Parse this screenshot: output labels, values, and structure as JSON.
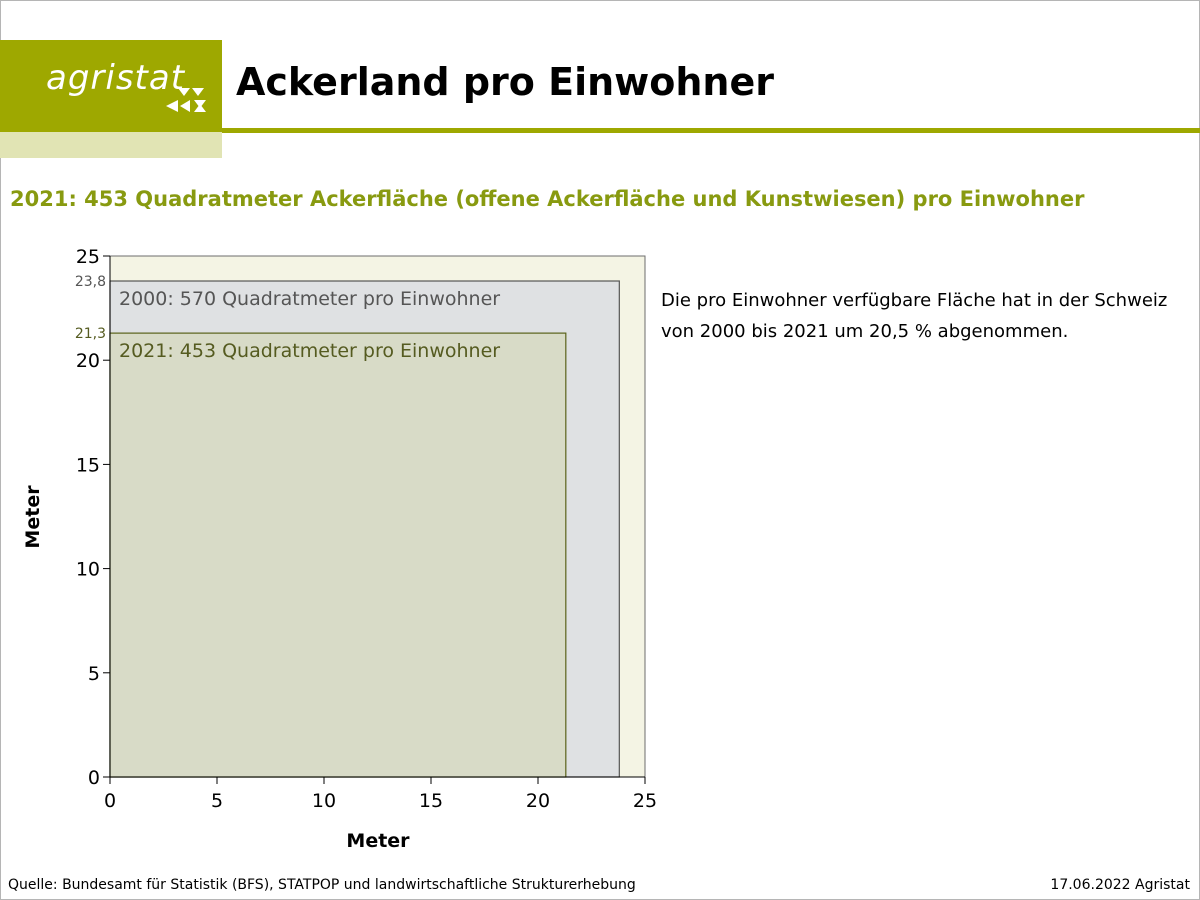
{
  "header": {
    "logo_text": "agristat",
    "title": "Ackerland pro Einwohner"
  },
  "subtitle": "2021: 453 Quadratmeter Ackerfläche (offene Ackerfläche und Kunstwiesen) pro Einwohner",
  "note": "Die pro Einwohner verfügbare Fläche hat in der Schweiz von 2000 bis 2021 um 20,5 % abgenommen.",
  "footer": {
    "source": "Quelle: Bundesamt für Statistik (BFS), STATPOP und landwirtschaftliche Strukturerhebung",
    "date": "17.06.2022 Agristat"
  },
  "colors": {
    "brand": "#9ea800",
    "brand_light": "#e1e4b4",
    "plot_background": "#f4f4e4",
    "square_2000_fill": "#dfe1e3",
    "square_2000_stroke": "#555555",
    "square_2021_fill": "#d8dbc7",
    "square_2021_stroke": "#5a621a",
    "label_2000": "#555555",
    "label_2021": "#555b20"
  },
  "chart_data": {
    "type": "area",
    "xlabel": "Meter",
    "ylabel": "Meter",
    "xlim": [
      0,
      25
    ],
    "ylim": [
      0,
      25
    ],
    "x_ticks": [
      "0",
      "5",
      "10",
      "15",
      "20",
      "25"
    ],
    "y_ticks": [
      "0",
      "5",
      "10",
      "15",
      "20",
      "25"
    ],
    "grid": false,
    "series": [
      {
        "name": "2000: 570 Quadratmeter pro Einwohner",
        "side": 23.8,
        "side_label": "23,8"
      },
      {
        "name": "2021: 453 Quadratmeter pro Einwohner",
        "side": 21.3,
        "side_label": "21,3"
      }
    ]
  }
}
